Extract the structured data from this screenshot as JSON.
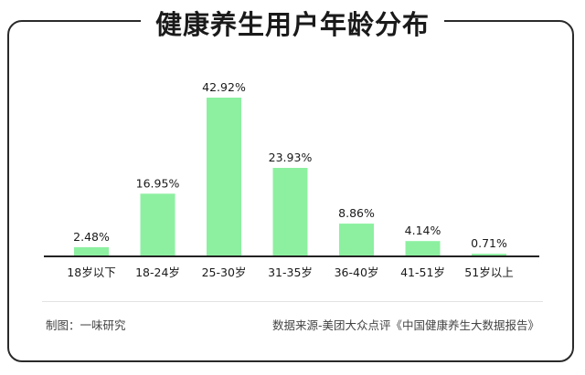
{
  "title": "健康养生用户年龄分布",
  "credit": "制图：一味研究",
  "source": "数据来源-美团大众点评《中国健康养生大数据报告》",
  "colors": {
    "bar": "#8cf0a0",
    "axis": "#222222",
    "text": "#1a1a1a"
  },
  "chart_data": {
    "type": "bar",
    "title": "健康养生用户年龄分布",
    "categories": [
      "18岁以下",
      "18-24岁",
      "25-30岁",
      "31-35岁",
      "36-40岁",
      "41-51岁",
      "51岁以上"
    ],
    "values": [
      2.48,
      16.95,
      42.92,
      23.93,
      8.86,
      4.14,
      0.71
    ],
    "value_labels": [
      "2.48%",
      "16.95%",
      "42.92%",
      "23.93%",
      "8.86%",
      "4.14%",
      "0.71%"
    ],
    "unit": "%",
    "xlabel": "",
    "ylabel": "",
    "ylim": [
      0,
      42.92
    ],
    "grid": false,
    "legend": "none"
  }
}
